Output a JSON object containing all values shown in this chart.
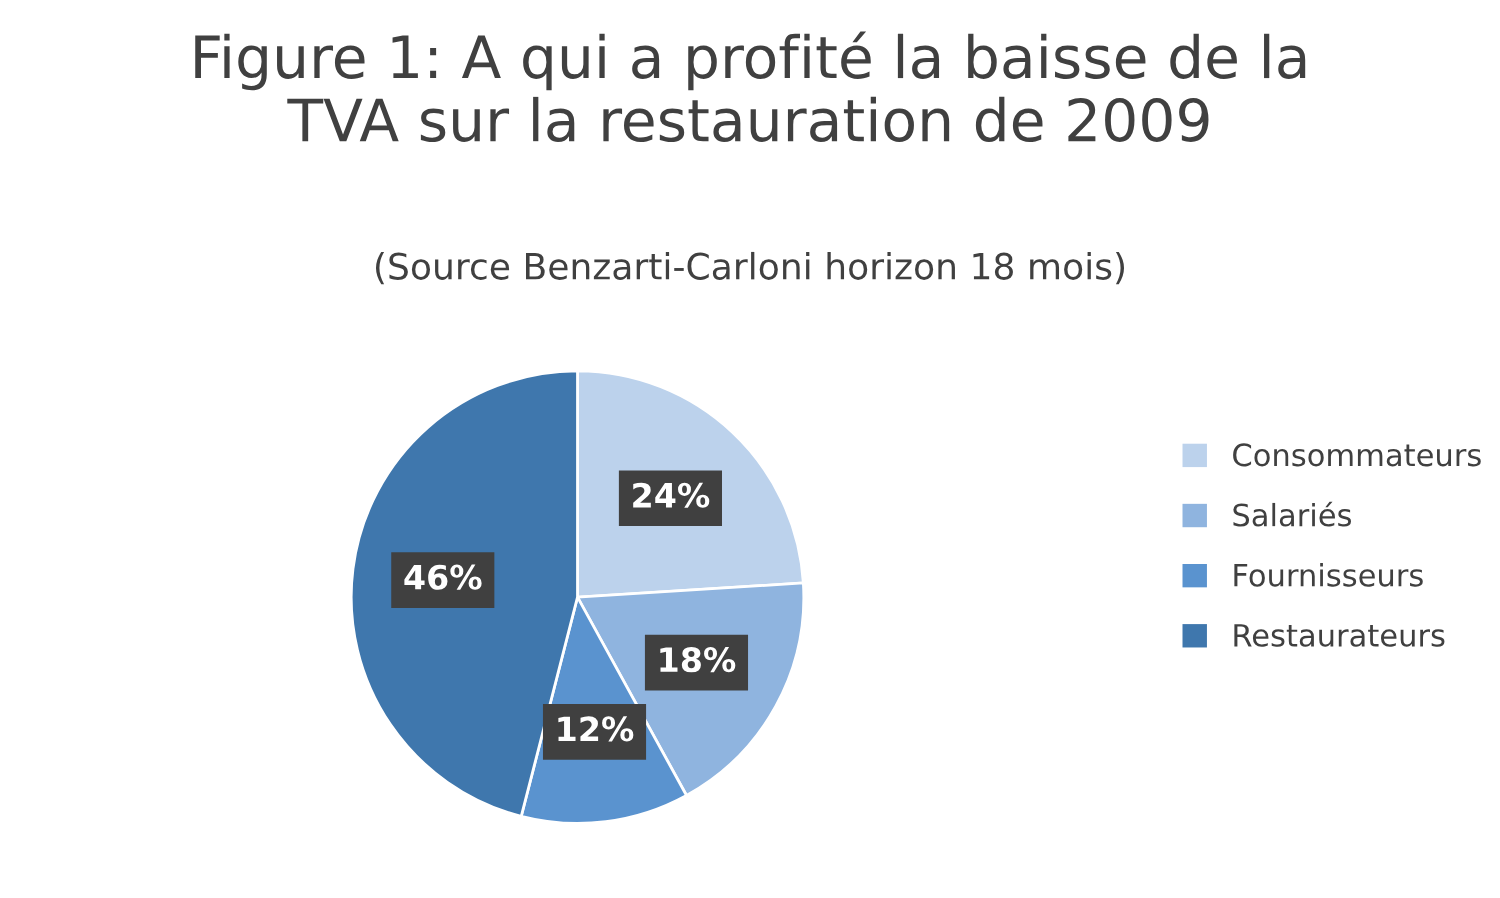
{
  "chart_data": {
    "type": "pie",
    "title": "Figure 1: A qui a profité la baisse de la\nTVA sur la restauration de 2009",
    "subtitle": "(Source Benzarti-Carloni horizon 18 mois)",
    "categories": [
      "Consommateurs",
      "Salariés",
      "Fournisseurs",
      "Restaurateurs"
    ],
    "values": [
      24,
      18,
      12,
      46
    ],
    "colors": [
      "#bcd2ec",
      "#8fb4df",
      "#5a93cf",
      "#3f77ad"
    ],
    "value_labels": [
      "24%",
      "18%",
      "12%",
      "46%"
    ],
    "legend": "right"
  }
}
